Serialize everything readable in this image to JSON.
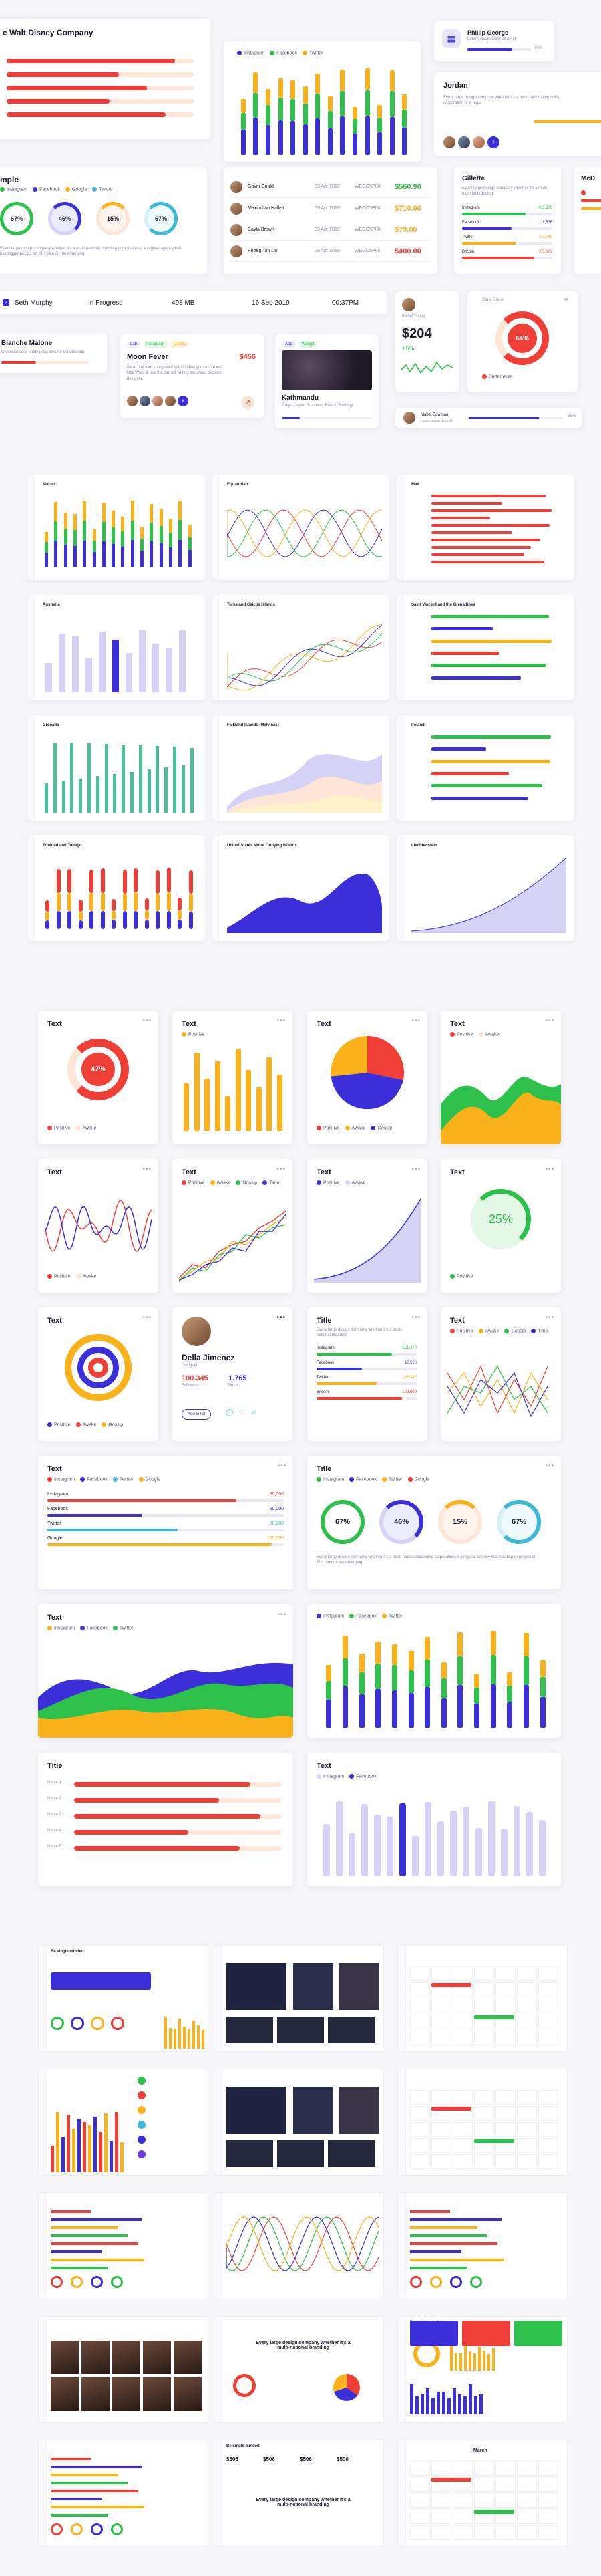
{
  "colors": {
    "red": "#ef3e36",
    "orange": "#fbb11a",
    "green": "#2dc04a",
    "blue": "#3b2fd9",
    "lavender": "#d5d2f5",
    "peach": "#fde6d7",
    "cyan": "#3db8d5",
    "purple": "#6a3be0"
  },
  "hero": {
    "card1": {
      "title": "e Walt Disney Company"
    },
    "card2": {
      "legend": [
        "Instagram",
        "Facebook",
        "Twitter"
      ]
    },
    "card3": {
      "name": "Phillip George",
      "desc": "Lorem ipsum dolor sit amet.",
      "percent": "70%"
    },
    "card4": {
      "name": "Jordan",
      "desc": "Every large design company whether it's a multi-national branding corporation or a regul"
    },
    "card5": {
      "title": "mple",
      "legend": [
        "Instagram",
        "Facebook",
        "Google",
        "Twitter"
      ],
      "rings": [
        "67%",
        "46%",
        "15%",
        "67%"
      ],
      "desc": "Every large design company whether it's a multi-national branding corporation or a regular agency that has bigger project on SIH hate on the emerging"
    },
    "table": {
      "rows": [
        {
          "name": "Gavin Gould",
          "date": "09 Apr 2019",
          "code": "WEGO5P8K",
          "amount": "$560.90",
          "color": "#2dc04a"
        },
        {
          "name": "Maximilian Hallett",
          "date": "09 Apr 2019",
          "code": "WEGO5P8K",
          "amount": "$710.00",
          "color": "#fbb11a"
        },
        {
          "name": "Cayla Brown",
          "date": "09 Apr 2019",
          "code": "WEGO5P8K",
          "amount": "$70.00",
          "color": "#fbb11a"
        },
        {
          "name": "Phoeg Tan Lin",
          "date": "09 Apr 2019",
          "code": "WEGO5P8K",
          "amount": "$400.00",
          "color": "#ef3e36"
        }
      ]
    },
    "gillette": {
      "title": "Gillette",
      "desc": "Every large design company whether it's a multi-national branding",
      "items": [
        {
          "label": "Instagram",
          "value": "0,2,379"
        },
        {
          "label": "Facebook",
          "value": "1,1,526"
        },
        {
          "label": "Twitter",
          "value": "2,3,345"
        },
        {
          "label": "Bitcoin",
          "value": "2,5,609"
        }
      ]
    },
    "mc": {
      "title": "McD"
    },
    "statusRow": {
      "name": "Seth Murphy",
      "status": "In Progress",
      "size": "498 MB",
      "date": "16 Sep 2019",
      "time": "00:37PM"
    },
    "blanche": {
      "name": "Blanche Malone",
      "desc": "Chemical case study programs for establishing"
    },
    "moon": {
      "tags": [
        "Lab",
        "Instagram",
        "Quality"
      ],
      "title": "Moon Fever",
      "price": "$456",
      "desc": "Be at one with your power with to view your entire in a little Word & use the carried writing Innovate, decision designer."
    },
    "kath": {
      "tags": [
        "App",
        "Widget"
      ],
      "title": "Kathmandu",
      "desc": "Tokyo, Japan Business, Brand, Strategy"
    },
    "price": {
      "name": "Mabel Young",
      "value": "$204",
      "change": "+5%"
    },
    "ring64": {
      "name": "Carla Gaine",
      "num": "#4",
      "percent": "64%",
      "legend": "Statements"
    },
    "mabel2": {
      "name": "Mabel Bowman",
      "desc": "Lorem ipsum dolor sit",
      "value": "75%"
    }
  },
  "countryCharts": [
    {
      "title": "Macau"
    },
    {
      "title": "Equatorian"
    },
    {
      "title": "Mali"
    },
    {
      "title": "Australia"
    },
    {
      "title": "Turks and Caicos Islands"
    },
    {
      "title": "Saint Vincent and the Grenadines"
    },
    {
      "title": "Grenada"
    },
    {
      "title": "Falkland Islands (Malvinas)"
    },
    {
      "title": "Ireland"
    },
    {
      "title": "Trinidad and Tobago"
    },
    {
      "title": "United States Minor Outlying Islands"
    },
    {
      "title": "Liechtenstein"
    }
  ],
  "widgets": {
    "w1": {
      "title": "Text",
      "percent": "47%",
      "legend": [
        "Positive",
        "Awake"
      ]
    },
    "w2": {
      "title": "Text",
      "legend": [
        "Positive"
      ]
    },
    "w3": {
      "title": "Text",
      "legend": [
        "Positive",
        "Awake",
        "Gossip"
      ]
    },
    "w4": {
      "title": "Text",
      "legend": [
        "Positive",
        "Awake"
      ]
    },
    "w5": {
      "title": "Text",
      "legend": [
        "Positive",
        "Awake"
      ]
    },
    "w6": {
      "title": "Text",
      "legend": [
        "Positive",
        "Awake",
        "Gossip",
        "Time"
      ]
    },
    "w7": {
      "title": "Text",
      "legend": [
        "Positive",
        "Awake"
      ]
    },
    "w8": {
      "title": "Text",
      "percent": "25%",
      "legend": [
        "Positive"
      ]
    },
    "w9": {
      "title": "Text",
      "legend": [
        "Positive",
        "Awake",
        "Gossip"
      ]
    },
    "w10": {
      "name": "Della Jimenez",
      "role": "Designer",
      "followers": "100.345",
      "followersLabel": "Followers",
      "posts": "1.765",
      "postsLabel": "Posts",
      "button": "Add to list"
    },
    "w11": {
      "title": "Title",
      "desc": "Every large design company whether it's a multi-national branding",
      "items": [
        {
          "label": "Instagram",
          "value": "151,379"
        },
        {
          "label": "Facebook",
          "value": "12,526"
        },
        {
          "label": "Twitter",
          "value": "145,345"
        },
        {
          "label": "Bitcoin",
          "value": "100,609"
        }
      ]
    },
    "w12": {
      "title": "Text",
      "legend": [
        "Positive",
        "Awake",
        "Gossip",
        "Time"
      ]
    },
    "w13": {
      "title": "Text",
      "legend": [
        "Instagram",
        "Facebook",
        "Twitter",
        "Google"
      ],
      "items": [
        {
          "label": "Instagram",
          "value": "90,000"
        },
        {
          "label": "Facebook",
          "value": "50,000"
        },
        {
          "label": "Twitter",
          "value": "60,000"
        },
        {
          "label": "Google",
          "value": "150,000"
        }
      ]
    },
    "w14": {
      "title": "Title",
      "legend": [
        "Instagram",
        "Facebook",
        "Twitter",
        "Google"
      ],
      "rings": [
        "67%",
        "46%",
        "15%",
        "67%"
      ],
      "desc": "Every large design company whether it's a multi-national branding corporation or a regular agency that has bigger project on SIH hate on the emerging"
    },
    "w15": {
      "title": "Text",
      "legend": [
        "Instagram",
        "Facebook",
        "Twitter"
      ]
    },
    "w16": {
      "legend": [
        "Instagram",
        "Facebook",
        "Twitter"
      ]
    },
    "w17": {
      "title": "Title",
      "rows": [
        "Name 1",
        "Name 2",
        "Name 3",
        "Name 4",
        "Name 5"
      ]
    },
    "w18": {
      "title": "Text",
      "legend": [
        "Instagram",
        "Facebook"
      ]
    }
  },
  "dashboards": {
    "d1": {
      "title": "Be single minded",
      "banner": "Lorem ipsum dolor sit amet"
    },
    "d11": {
      "headline": "Every large design company whether it's a multi-national branding"
    },
    "d13": {
      "title": "Be single minded"
    },
    "d16": {
      "title": "Be single minded",
      "values": [
        "$506",
        "$506",
        "$506",
        "$506"
      ],
      "headline": "Every large design company whether it's a multi-national branding"
    },
    "d17": {
      "month": "March"
    }
  }
}
